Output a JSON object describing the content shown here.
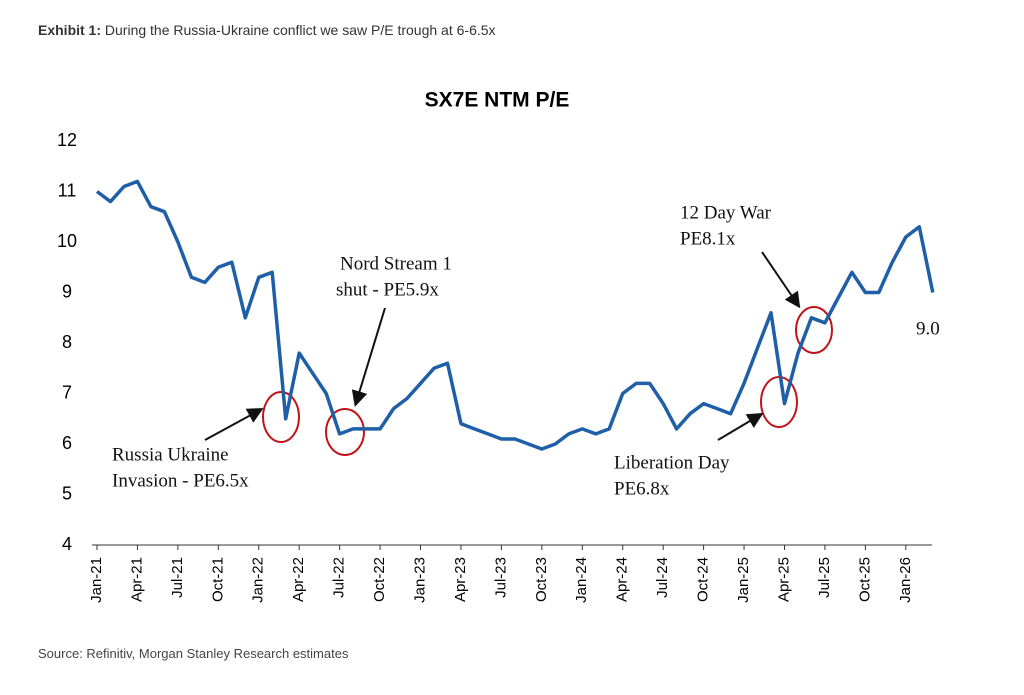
{
  "exhibit_label": "Exhibit 1:",
  "exhibit_text": "During the Russia-Ukraine conflict we saw P/E trough at 6-6.5x",
  "source": "Source: Refinitiv, Morgan Stanley Research estimates",
  "chart_data": {
    "type": "line",
    "title": "SX7E NTM P/E",
    "categories": [
      "Jan-21",
      null,
      null,
      "Apr-21",
      null,
      null,
      "Jul-21",
      null,
      null,
      "Oct-21",
      null,
      null,
      "Jan-22",
      null,
      null,
      "Apr-22",
      null,
      null,
      "Jul-22",
      null,
      null,
      "Oct-22",
      null,
      null,
      "Jan-23",
      null,
      null,
      "Apr-23",
      null,
      null,
      "Jul-23",
      null,
      null,
      "Oct-23",
      null,
      null,
      "Jan-24",
      null,
      null,
      "Apr-24",
      null,
      null,
      "Jul-24",
      null,
      null,
      "Oct-24",
      null,
      null,
      "Jan-25",
      null,
      null,
      "Apr-25",
      null,
      null,
      "Jul-25",
      null,
      null,
      "Oct-25",
      null,
      null,
      "Jan-26",
      null,
      null
    ],
    "series": [
      {
        "name": "SX7E NTM P/E",
        "color": "#1f5fa8",
        "values": [
          11.0,
          10.8,
          11.1,
          11.2,
          10.7,
          10.6,
          10.0,
          9.3,
          9.2,
          9.5,
          9.6,
          8.5,
          9.3,
          9.4,
          6.5,
          7.8,
          7.4,
          7.0,
          6.2,
          6.3,
          6.3,
          6.3,
          6.7,
          6.9,
          7.2,
          7.5,
          7.6,
          6.4,
          6.3,
          6.2,
          6.1,
          6.1,
          6.0,
          5.9,
          6.0,
          6.2,
          6.3,
          6.2,
          6.3,
          7.0,
          7.2,
          7.2,
          6.8,
          6.3,
          6.6,
          6.8,
          6.7,
          6.6,
          7.2,
          7.9,
          8.6,
          6.8,
          7.8,
          8.5,
          8.4,
          8.9,
          9.4,
          9.0,
          9.0,
          9.6,
          10.1,
          10.3,
          9.0
        ]
      }
    ],
    "ylim": [
      4,
      12
    ],
    "yticks": [
      4,
      5,
      6,
      7,
      8,
      9,
      10,
      11,
      12
    ],
    "grid": false,
    "annotations": [
      "Russia Ukraine",
      "Invasion - PE6.5x",
      "Nord Stream 1",
      "shut - PE5.9x",
      "12 Day War",
      "PE8.1x",
      "Liberation Day",
      "PE6.8x",
      "9.0"
    ]
  }
}
